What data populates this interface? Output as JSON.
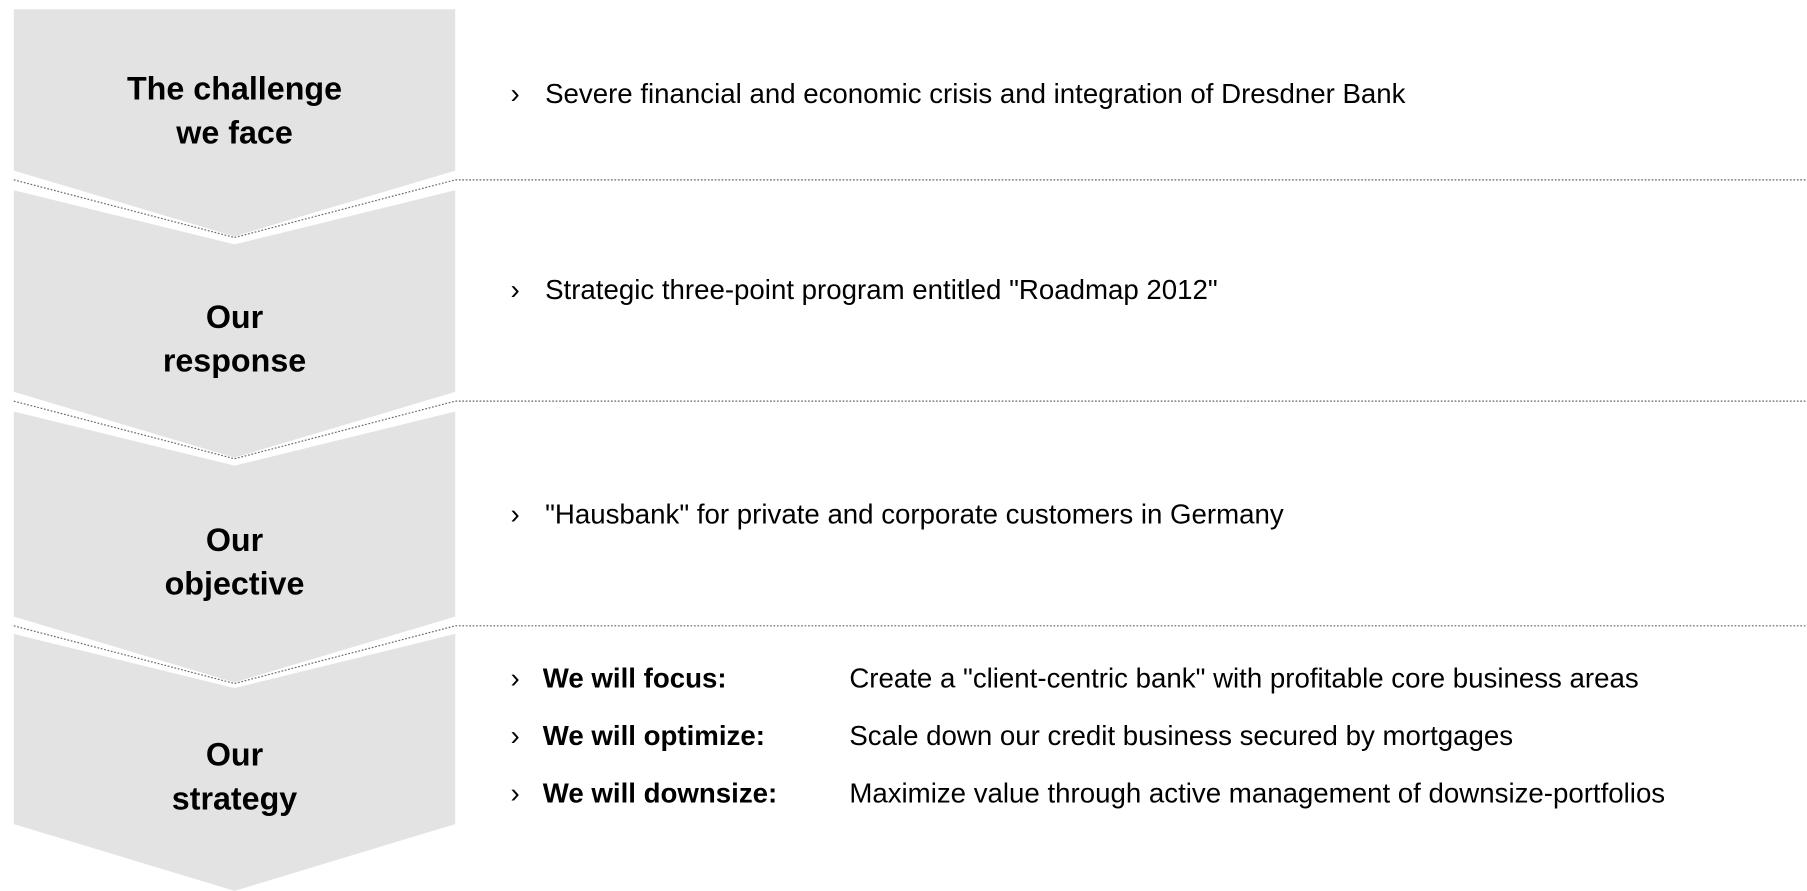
{
  "stages": [
    {
      "label": [
        "The challenge",
        "we face"
      ],
      "items": [
        {
          "text": "Severe financial and economic crisis and integration of Dresdner Bank"
        }
      ]
    },
    {
      "label": [
        "Our",
        "response"
      ],
      "items": [
        {
          "text": "Strategic three-point program entitled \"Roadmap 2012\""
        }
      ]
    },
    {
      "label": [
        "Our",
        "objective"
      ],
      "items": [
        {
          "text": "\"Hausbank\" for private and corporate customers in Germany"
        }
      ]
    },
    {
      "label": [
        "Our",
        "strategy"
      ],
      "items": [
        {
          "term": "We will focus:",
          "text": "Create a \"client-centric bank\" with profitable core business areas"
        },
        {
          "term": "We will optimize:",
          "text": "Scale down our credit business secured by mortgages"
        },
        {
          "term": "We will downsize:",
          "text": "Maximize value through active management of downsize-portfolios"
        }
      ]
    }
  ]
}
